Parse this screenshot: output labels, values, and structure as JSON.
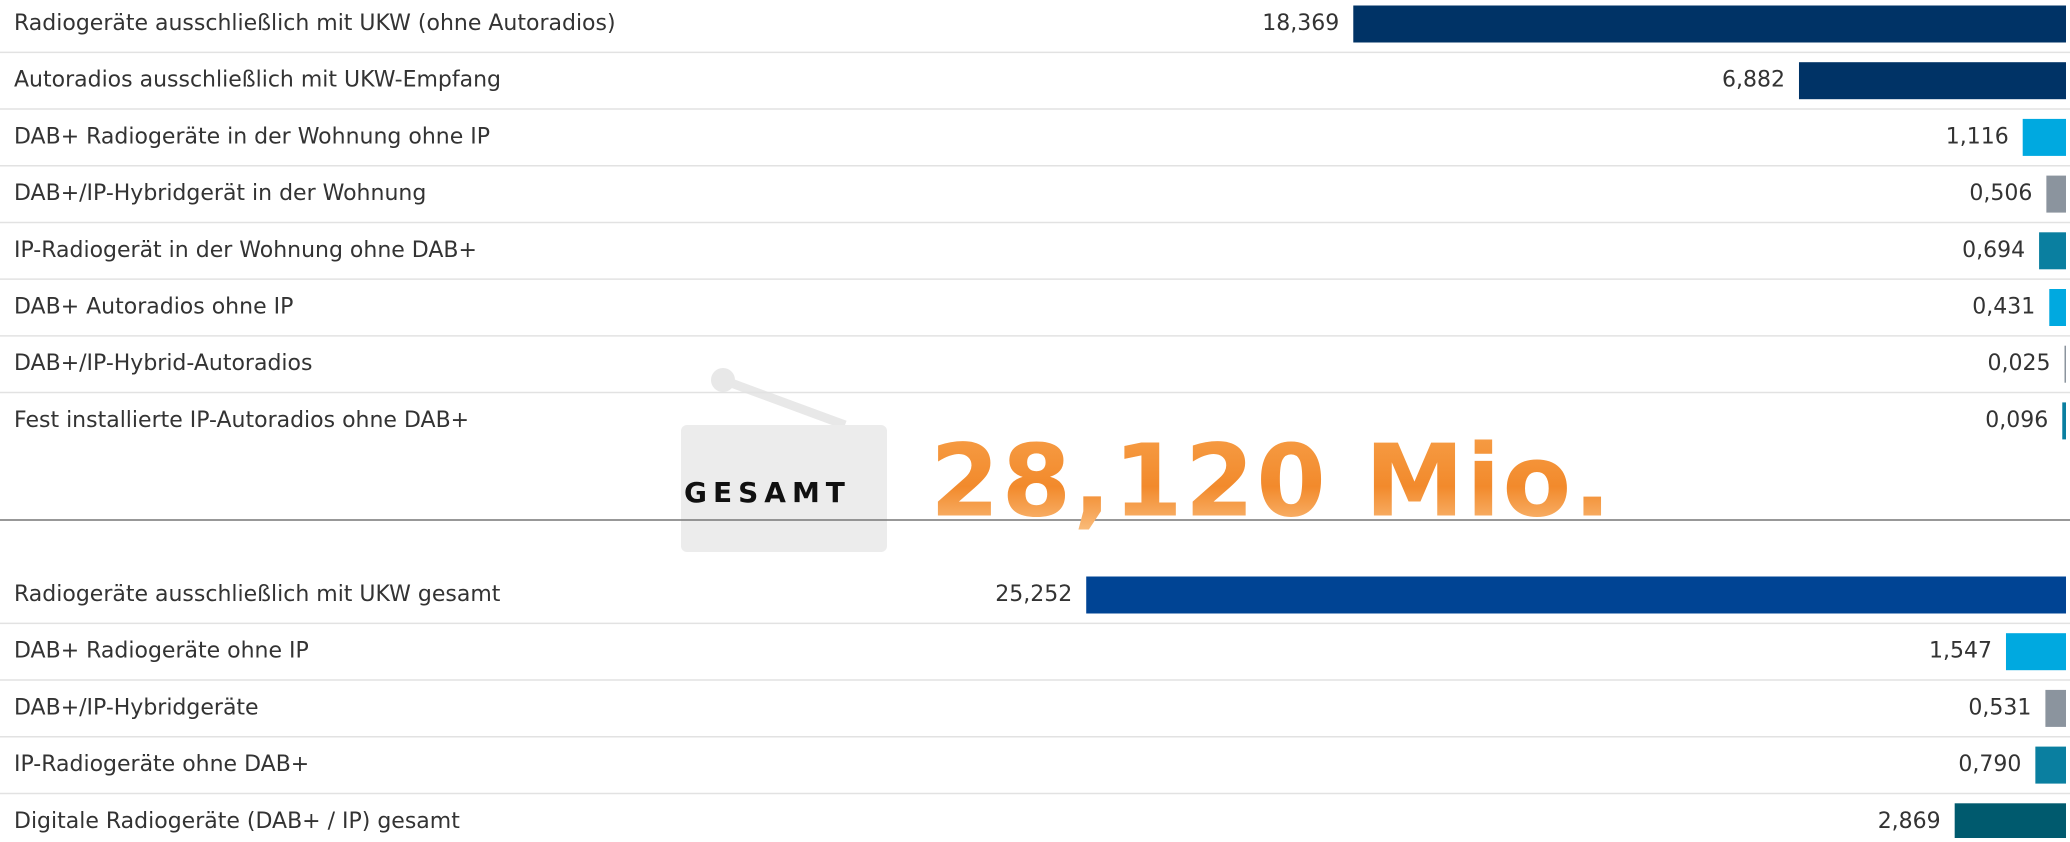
{
  "chart_data": [
    {
      "type": "bar",
      "categories": [
        "Radiogeräte ausschließlich mit UKW (ohne Autoradios)",
        "Autoradios ausschließlich mit UKW-Empfang",
        "DAB+ Radiogeräte in der Wohnung ohne IP",
        "DAB+/IP-Hybridgerät in der Wohnung",
        "IP-Radiogerät in der Wohnung ohne DAB+",
        "DAB+ Autoradios ohne IP",
        "DAB+/IP-Hybrid-Autoradios",
        "Fest installierte IP-Autoradios ohne DAB+"
      ],
      "values": [
        18.369,
        6.882,
        1.116,
        0.506,
        0.694,
        0.431,
        0.025,
        0.096
      ],
      "value_labels": [
        "18,369",
        "6,882",
        "1,116",
        "0,506",
        "0,694",
        "0,431",
        "0,025",
        "0,096"
      ],
      "colors": [
        "#003366",
        "#003366",
        "#00a9e0",
        "#8b949e",
        "#0a7fa0",
        "#00a9e0",
        "#8b949e",
        "#0a7fa0"
      ]
    },
    {
      "type": "bar",
      "categories": [
        "Radiogeräte ausschließlich mit UKW gesamt",
        "DAB+ Radiogeräte ohne IP",
        "DAB+/IP-Hybridgeräte",
        "IP-Radiogeräte ohne DAB+",
        "Digitale Radiogeräte (DAB+ / IP) gesamt"
      ],
      "values": [
        25.252,
        1.547,
        0.531,
        0.79,
        2.869
      ],
      "value_labels": [
        "25,252",
        "1,547",
        "0,531",
        "0,790",
        "2,869"
      ],
      "colors": [
        "#004494",
        "#00a9e0",
        "#8b949e",
        "#0a7fa0",
        "#005a6e"
      ]
    }
  ],
  "total": {
    "label": "GESAMT",
    "value": "28,120 Mio."
  }
}
